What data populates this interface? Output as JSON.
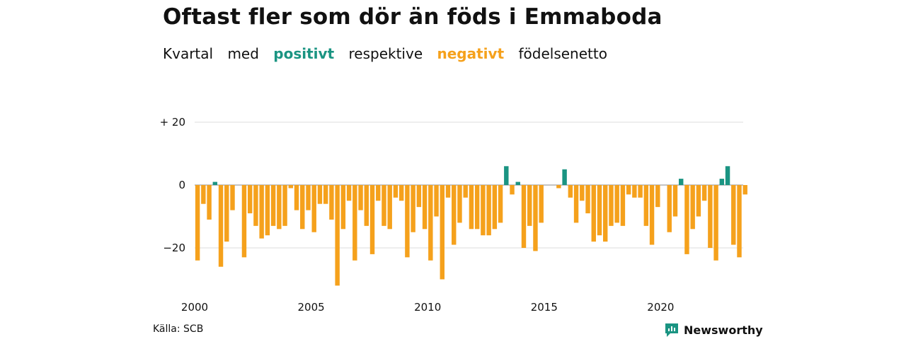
{
  "title": "Oftast fler som dör än föds i Emmaboda",
  "subtitle": {
    "part1": "Kvartal",
    "part2": "med",
    "positive_word": "positivt",
    "part3": "respektive",
    "negative_word": "negativt",
    "part4": "födelsenetto"
  },
  "colors": {
    "positive": "#1a9482",
    "negative": "#f5a11c",
    "grid": "#dddddd"
  },
  "source": "Källa: SCB",
  "brand": {
    "name": "Newsworthy",
    "icon": "newsworthy-logo-icon"
  },
  "chart_data": {
    "type": "bar",
    "ylim": [
      -34,
      22
    ],
    "y_ticks": [
      {
        "value": 20,
        "label": "+ 20"
      },
      {
        "value": 0,
        "label": "0"
      },
      {
        "value": -20,
        "label": "−20"
      }
    ],
    "x_ticks": [
      {
        "year": 2000,
        "label": "2000"
      },
      {
        "year": 2005,
        "label": "2005"
      },
      {
        "year": 2010,
        "label": "2010"
      },
      {
        "year": 2015,
        "label": "2015"
      },
      {
        "year": 2020,
        "label": "2020"
      }
    ],
    "start": "2000 Q1",
    "values": [
      -24,
      -6,
      -11,
      1,
      -26,
      -18,
      -8,
      0,
      -23,
      -9,
      -13,
      -17,
      -16,
      -13,
      -14,
      -13,
      -1,
      -8,
      -14,
      -8,
      -15,
      -6,
      -6,
      -11,
      -32,
      -14,
      -5,
      -24,
      -8,
      -13,
      -22,
      -5,
      -13,
      -14,
      -4,
      -5,
      -23,
      -15,
      -7,
      -14,
      -24,
      -10,
      -30,
      -4,
      -19,
      -12,
      -4,
      -14,
      -14,
      -16,
      -16,
      -14,
      -12,
      6,
      -3,
      1,
      -20,
      -13,
      -21,
      -12,
      0,
      0,
      -1,
      5,
      -4,
      -12,
      -5,
      -9,
      -18,
      -16,
      -18,
      -13,
      -12,
      -13,
      -3,
      -4,
      -4,
      -13,
      -19,
      -7,
      0,
      -15,
      -10,
      2,
      -22,
      -14,
      -10,
      -5,
      -20,
      -24,
      2,
      6,
      -19,
      -23,
      -3
    ]
  }
}
